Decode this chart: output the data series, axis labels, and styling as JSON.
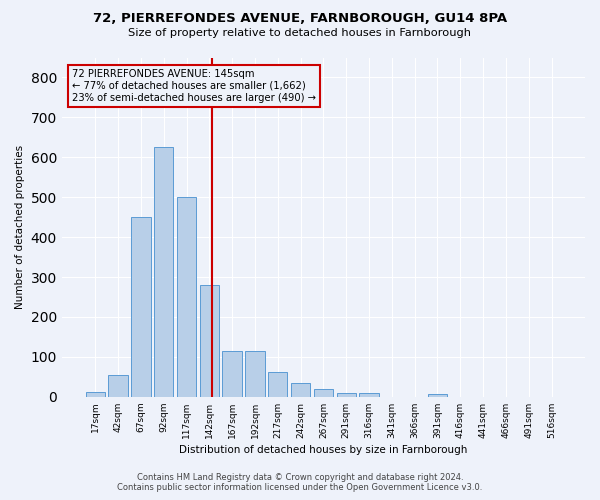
{
  "title_line1": "72, PIERREFONDES AVENUE, FARNBOROUGH, GU14 8PA",
  "title_line2": "Size of property relative to detached houses in Farnborough",
  "xlabel": "Distribution of detached houses by size in Farnborough",
  "ylabel": "Number of detached properties",
  "footer_line1": "Contains HM Land Registry data © Crown copyright and database right 2024.",
  "footer_line2": "Contains public sector information licensed under the Open Government Licence v3.0.",
  "bar_labels": [
    "17sqm",
    "42sqm",
    "67sqm",
    "92sqm",
    "117sqm",
    "142sqm",
    "167sqm",
    "192sqm",
    "217sqm",
    "242sqm",
    "267sqm",
    "291sqm",
    "316sqm",
    "341sqm",
    "366sqm",
    "391sqm",
    "416sqm",
    "441sqm",
    "466sqm",
    "491sqm",
    "516sqm"
  ],
  "bar_values": [
    12,
    55,
    450,
    625,
    500,
    280,
    115,
    115,
    62,
    35,
    20,
    10,
    10,
    0,
    0,
    8,
    0,
    0,
    0,
    0,
    0
  ],
  "bar_color": "#b8cfe8",
  "bar_edge_color": "#5b9bd5",
  "vline_x_index": 5.12,
  "vline_color": "#cc0000",
  "annotation_box_edge_color": "#cc0000",
  "property_label": "72 PIERREFONDES AVENUE: 145sqm",
  "annotation_line2": "← 77% of detached houses are smaller (1,662)",
  "annotation_line3": "23% of semi-detached houses are larger (490) →",
  "background_color": "#eef2fa",
  "grid_color": "#ffffff",
  "ylim": [
    0,
    850
  ],
  "yticks": [
    0,
    100,
    200,
    300,
    400,
    500,
    600,
    700,
    800
  ]
}
